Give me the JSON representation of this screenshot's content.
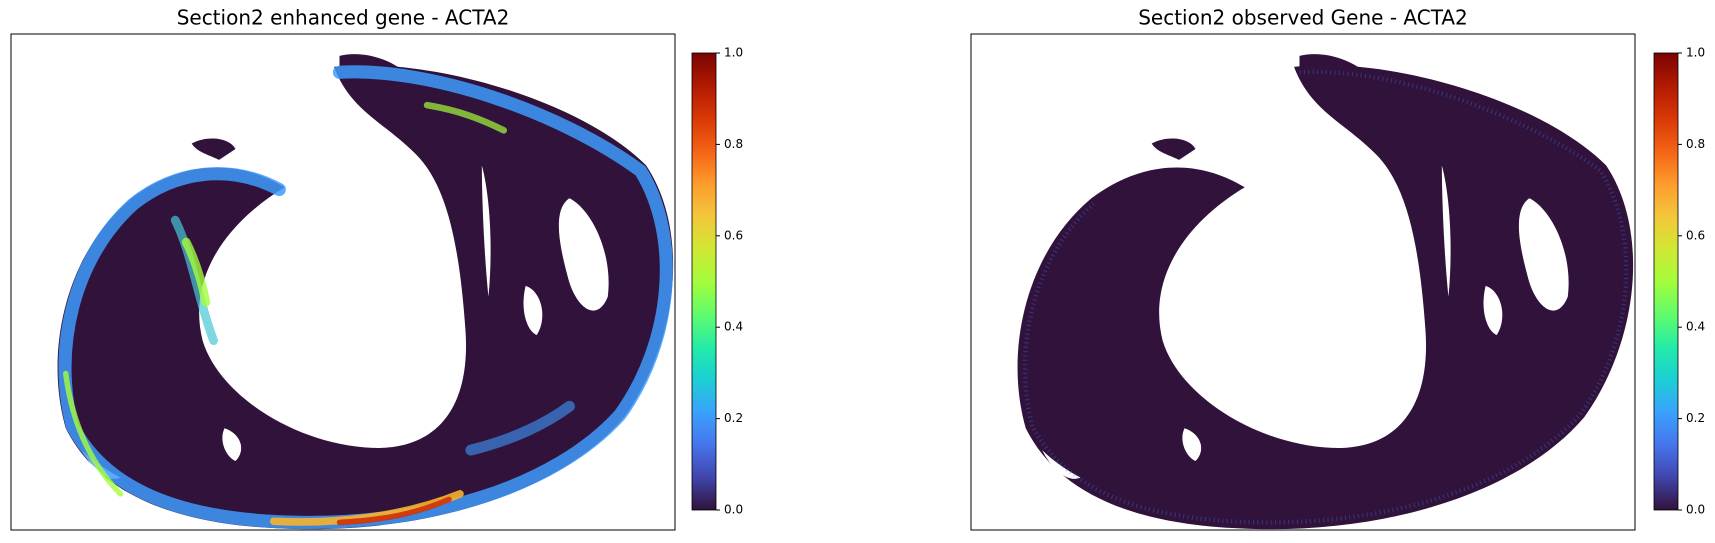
{
  "chart_data": [
    {
      "type": "heatmap",
      "title": "Section2 enhanced gene - ACTA2",
      "colormap": "turbo",
      "clim": [
        0,
        1
      ],
      "cticks": [
        {
          "value": 0,
          "label": "0.0"
        },
        {
          "value": 0.2,
          "label": "0.2"
        },
        {
          "value": 0.4,
          "label": "0.4"
        },
        {
          "value": 0.6,
          "label": "0.6"
        },
        {
          "value": 0.8,
          "label": "0.8"
        },
        {
          "value": 1,
          "label": "1.0"
        }
      ]
    },
    {
      "type": "heatmap",
      "title": "Section2 observed Gene - ACTA2",
      "colormap": "turbo",
      "clim": [
        0,
        1
      ],
      "cticks": [
        {
          "value": 0,
          "label": "0.0"
        },
        {
          "value": 0.2,
          "label": "0.2"
        },
        {
          "value": 0.4,
          "label": "0.4"
        },
        {
          "value": 0.6,
          "label": "0.6"
        },
        {
          "value": 0.8,
          "label": "0.8"
        },
        {
          "value": 1,
          "label": "1.0"
        }
      ]
    }
  ]
}
